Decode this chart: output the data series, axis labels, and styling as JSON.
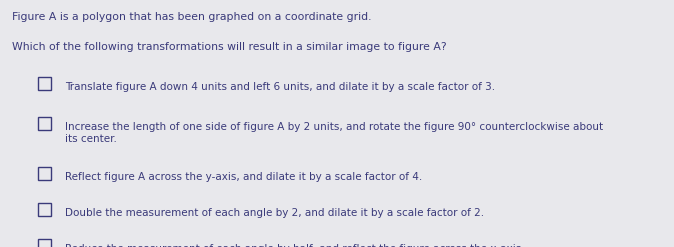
{
  "title_line1": "Figure A is a polygon that has been graphed on a coordinate grid.",
  "title_line2": "Which of the following transformations will result in a similar image to figure A?",
  "options": [
    "Translate figure A down 4 units and left 6 units, and dilate it by a scale factor of 3.",
    "Increase the length of one side of figure A by 2 units, and rotate the figure 90° counterclockwise about\nits center.",
    "Reflect figure A across the y-axis, and dilate it by a scale factor of 4.",
    "Double the measurement of each angle by 2, and dilate it by a scale factor of 2.",
    "Reduce the measurement of each angle by half, and reflect the figure across the x-axis."
  ],
  "background_color": "#e8e8ec",
  "text_color": "#3a3a7a",
  "font_size_title": 7.8,
  "font_size_options": 7.5,
  "figsize": [
    6.74,
    2.47
  ],
  "dpi": 100
}
